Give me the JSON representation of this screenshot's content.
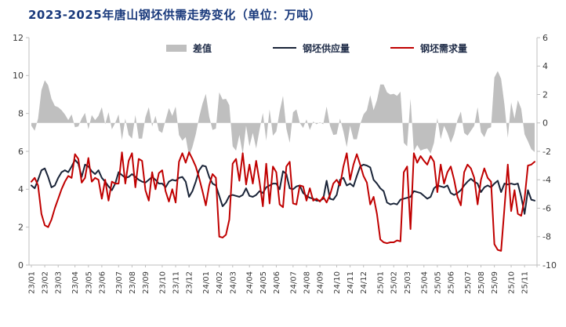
{
  "title": "2023-2025年唐山钢坯供需走势变化（单位：万吨）",
  "colors": {
    "title": "#1A3A7C",
    "diff_area": "#BFBFBF",
    "supply_line": "#1A2438",
    "demand_line": "#C00000",
    "axis_line": "#BFBFBF",
    "tick_label": "#3a3a3a",
    "background": "#FFFFFF"
  },
  "legend": {
    "diff": "差值",
    "supply": "钢坯供应量",
    "demand": "钢坯需求量"
  },
  "chart_data": {
    "type": "line",
    "title": "2023-2025年唐山钢坯供需走势变化（单位：万吨）",
    "xlabel": "",
    "ylabel_left": "",
    "ylabel_right": "",
    "grid": false,
    "legend_position": "top-center",
    "frequency": "weekly",
    "x_tick_labels": [
      "23/01",
      "23/02",
      "23/03",
      "23/04",
      "23/05",
      "23/06",
      "23/07",
      "23/08",
      "23/09",
      "23/10",
      "23/11",
      "23/12",
      "24/01",
      "24/02",
      "24/03",
      "24/04",
      "24/05",
      "24/06",
      "24/07",
      "24/08",
      "24/09",
      "24/10",
      "24/11",
      "24/12",
      "25/01",
      "25/02",
      "25/03",
      "25/04",
      "25/05",
      "25/06",
      "25/07",
      "25/08",
      "25/09",
      "25/10",
      "25/11"
    ],
    "weeks_per_month": [
      4,
      4,
      5,
      4,
      4,
      5,
      4,
      4,
      5,
      4,
      4,
      5,
      4,
      4,
      5,
      4,
      4,
      5,
      4,
      4,
      5,
      4,
      4,
      5,
      4,
      4,
      5,
      4,
      4,
      5,
      4,
      4,
      5,
      4,
      4
    ],
    "left_axis": {
      "min": 0,
      "max": 12,
      "ticks": [
        0,
        2,
        4,
        6,
        8,
        10,
        12
      ]
    },
    "right_axis": {
      "min": -10,
      "max": 6,
      "ticks": [
        -10,
        -8,
        -6,
        -4,
        -2,
        0,
        2,
        4,
        6
      ]
    },
    "series": [
      {
        "name": "差值",
        "render": "area",
        "axis": "right",
        "color": "#BFBFBF",
        "derived": "supply_minus_demand"
      },
      {
        "name": "钢坯供应量",
        "render": "line",
        "axis": "left",
        "color": "#1A2438",
        "values": [
          4.2,
          4.05,
          4.5,
          5.0,
          5.1,
          4.65,
          4.1,
          4.2,
          4.6,
          4.9,
          5.0,
          4.9,
          5.2,
          5.55,
          5.35,
          4.65,
          5.3,
          5.2,
          4.95,
          4.8,
          5.0,
          4.6,
          4.4,
          4.15,
          3.95,
          4.3,
          4.9,
          4.75,
          4.6,
          4.65,
          4.8,
          4.65,
          4.5,
          4.4,
          4.35,
          4.5,
          4.65,
          4.5,
          4.3,
          4.3,
          4.1,
          4.4,
          4.5,
          4.45,
          4.6,
          4.65,
          4.4,
          3.6,
          3.9,
          4.4,
          5.0,
          5.25,
          5.2,
          4.65,
          4.3,
          4.2,
          3.65,
          3.1,
          3.3,
          3.65,
          3.7,
          3.65,
          3.6,
          3.7,
          4.05,
          3.65,
          3.6,
          3.7,
          3.9,
          3.8,
          4.1,
          4.2,
          4.3,
          4.3,
          4.0,
          4.95,
          4.8,
          4.05,
          4.0,
          4.15,
          4.2,
          3.8,
          3.65,
          3.55,
          3.5,
          3.4,
          3.4,
          3.5,
          4.45,
          3.5,
          3.45,
          3.7,
          4.5,
          4.6,
          4.2,
          4.3,
          4.15,
          4.7,
          5.2,
          5.3,
          5.25,
          5.15,
          4.5,
          4.3,
          4.05,
          3.9,
          3.3,
          3.2,
          3.25,
          3.2,
          3.45,
          3.5,
          3.55,
          3.6,
          3.9,
          3.85,
          3.8,
          3.65,
          3.5,
          3.6,
          4.05,
          4.2,
          4.15,
          4.1,
          4.2,
          3.8,
          3.7,
          3.8,
          3.95,
          4.2,
          4.4,
          4.55,
          4.4,
          4.3,
          3.85,
          4.1,
          4.2,
          4.1,
          4.3,
          4.45,
          3.85,
          4.3,
          4.25,
          4.3,
          4.25,
          4.3,
          3.6,
          2.7,
          3.95,
          3.45,
          3.4
        ]
      },
      {
        "name": "钢坯需求量",
        "render": "line",
        "axis": "left",
        "color": "#C00000",
        "values": [
          4.4,
          4.6,
          4.2,
          2.7,
          2.1,
          2.0,
          2.4,
          3.0,
          3.5,
          4.0,
          4.4,
          4.7,
          4.6,
          5.85,
          5.6,
          4.35,
          4.6,
          5.65,
          4.4,
          4.6,
          4.5,
          3.5,
          4.5,
          3.4,
          4.4,
          4.3,
          4.3,
          5.95,
          4.3,
          5.5,
          5.9,
          4.1,
          5.6,
          5.5,
          3.95,
          3.4,
          4.9,
          4.0,
          4.85,
          5.0,
          3.9,
          3.35,
          4.0,
          3.3,
          5.45,
          5.9,
          5.4,
          5.95,
          5.6,
          5.2,
          4.6,
          3.9,
          3.15,
          4.2,
          4.8,
          4.6,
          1.5,
          1.45,
          1.6,
          2.4,
          5.35,
          5.6,
          4.45,
          5.9,
          4.25,
          5.3,
          4.3,
          5.5,
          4.4,
          3.1,
          5.35,
          3.25,
          5.2,
          4.9,
          3.2,
          3.05,
          5.2,
          5.45,
          3.25,
          3.2,
          4.2,
          4.15,
          3.4,
          4.05,
          3.4,
          3.5,
          3.35,
          3.6,
          3.3,
          3.7,
          4.3,
          4.5,
          4.2,
          5.2,
          5.9,
          4.5,
          5.3,
          5.85,
          5.3,
          4.7,
          4.35,
          3.2,
          3.6,
          2.7,
          1.35,
          1.2,
          1.15,
          1.2,
          1.2,
          1.3,
          1.25,
          4.9,
          5.2,
          1.9,
          5.9,
          5.4,
          5.75,
          5.5,
          5.3,
          5.75,
          5.45,
          3.85,
          5.3,
          4.3,
          4.9,
          5.2,
          4.5,
          3.6,
          3.15,
          4.9,
          5.3,
          5.1,
          4.6,
          3.2,
          4.5,
          5.1,
          4.6,
          4.4,
          1.1,
          0.8,
          0.75,
          3.0,
          5.3,
          2.85,
          3.95,
          2.7,
          2.6,
          3.5,
          5.25,
          5.3,
          5.45
        ]
      }
    ]
  }
}
